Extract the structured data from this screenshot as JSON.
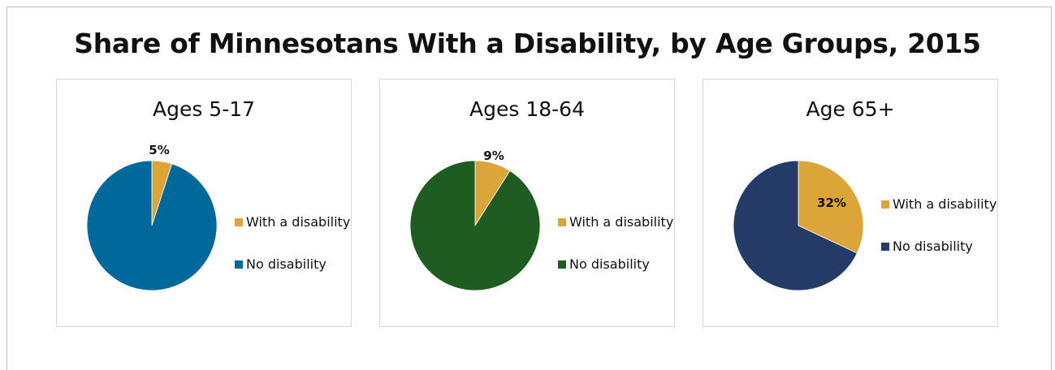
{
  "chart_data": {
    "title": "Share of Minnesotans With a Disability, by Age Groups, 2015",
    "charts": [
      {
        "type": "pie",
        "title": "Ages 5-17",
        "slices": [
          {
            "name": "With a disability",
            "value": 5,
            "label": "5%",
            "color": "#DBA53A"
          },
          {
            "name": "No disability",
            "value": 95,
            "label": "",
            "color": "#00699B"
          }
        ],
        "legend": "right"
      },
      {
        "type": "pie",
        "title": "Ages 18-64",
        "slices": [
          {
            "name": "With a disability",
            "value": 9,
            "label": "9%",
            "color": "#DBA53A"
          },
          {
            "name": "No disability",
            "value": 91,
            "label": "",
            "color": "#1F5C22"
          }
        ],
        "legend": "right"
      },
      {
        "type": "pie",
        "title": "Age 65+",
        "slices": [
          {
            "name": "With a disability",
            "value": 32,
            "label": "32%",
            "color": "#DBA53A"
          },
          {
            "name": "No disability",
            "value": 68,
            "label": "",
            "color": "#233B66"
          }
        ],
        "legend": "right"
      }
    ]
  }
}
